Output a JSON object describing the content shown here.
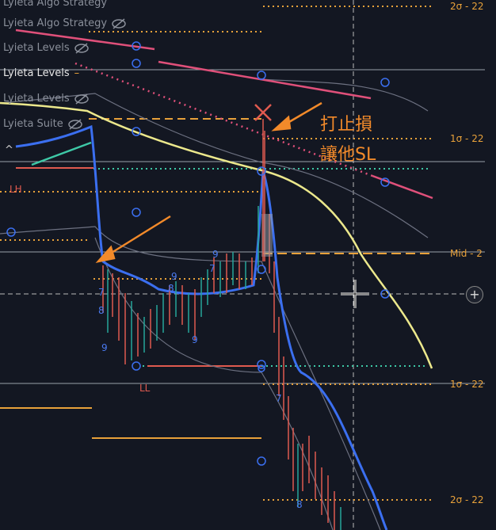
{
  "indicators": [
    {
      "label": "Lyieta Algo Strategy",
      "icon": "eye-slash-icon"
    },
    {
      "label": "Lyieta Levels",
      "icon": "eye-slash-icon"
    },
    {
      "label": "Lyieta Levels",
      "icon": "none"
    },
    {
      "label": "Lyieta Levels",
      "icon": "eye-slash-icon"
    },
    {
      "label": "Lyieta Suite",
      "icon": "eye-slash-icon"
    }
  ],
  "levels": {
    "top_sigma": "2σ - 22",
    "upper_sigma": "1σ - 22",
    "mid": "Mid - 2",
    "lower_sigma": "1σ - 22",
    "bottom_sigma": "2σ - 22"
  },
  "markers": {
    "lh": "LH",
    "ll": "LL"
  },
  "annotation": {
    "line1": "打止損",
    "line2": "讓他SL"
  },
  "candle_labels": [
    "7",
    "8",
    "9",
    "9",
    "7",
    "9",
    "8",
    "7",
    "8",
    "9"
  ],
  "colors": {
    "background": "#131722",
    "orange": "#f28a2a",
    "blue": "#3b6ff0",
    "yellow": "#ece88c",
    "pink": "#e0507a",
    "teal": "#3ec9a7",
    "red": "#e05a4f",
    "green": "#26a69a"
  }
}
